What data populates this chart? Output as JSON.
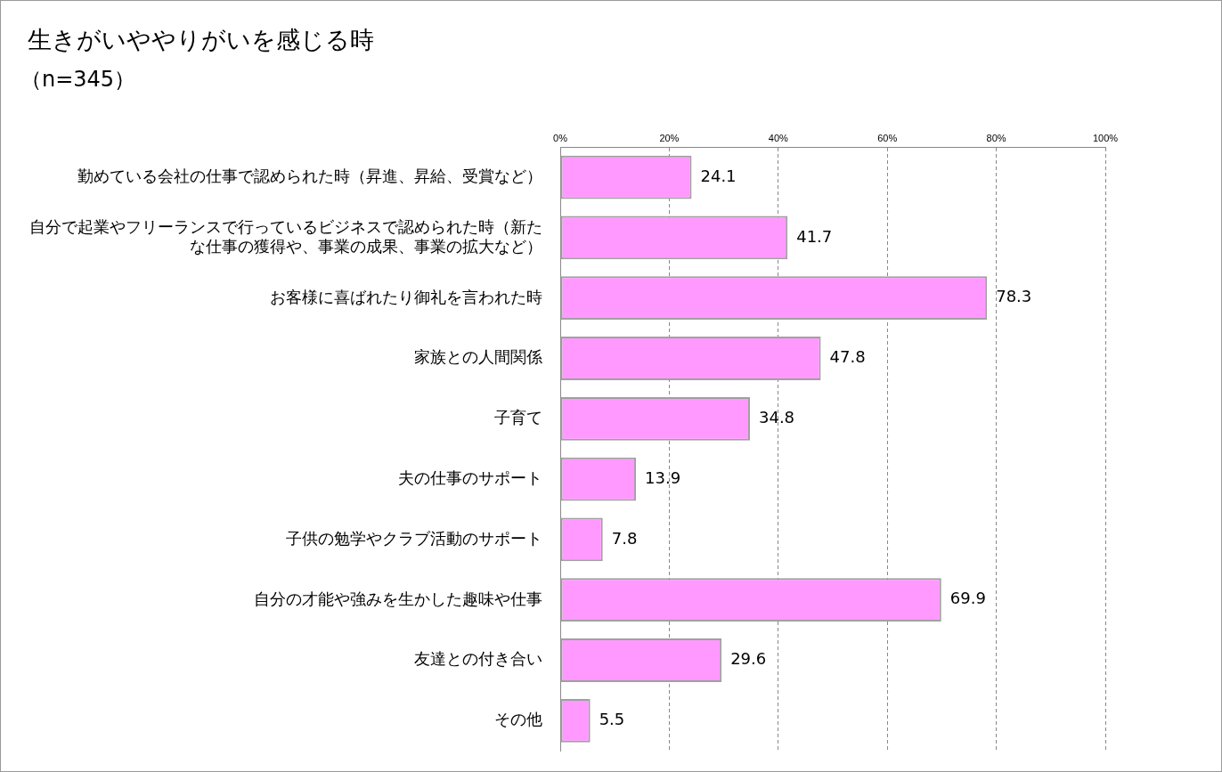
{
  "chart_data": {
    "type": "bar",
    "orientation": "horizontal",
    "title": "生きがいややりがいを感じる時",
    "subtitle": "（n=345）",
    "categories": [
      "勤めている会社の仕事で認められた時（昇進、昇給、受賞など）",
      "自分で起業やフリーランスで行っているビジネスで認められた時（新たな仕事の獲得や、事業の成果、事業の拡大など）",
      "お客様に喜ばれたり御礼を言われた時",
      "家族との人間関係",
      "子育て",
      "夫の仕事のサポート",
      "子供の勉学やクラブ活動のサポート",
      "自分の才能や強みを生かした趣味や仕事",
      "友達との付き合い",
      "その他"
    ],
    "values": [
      24.1,
      41.7,
      78.3,
      47.8,
      34.8,
      13.9,
      7.8,
      69.9,
      29.6,
      5.5
    ],
    "color": "#ff99ff",
    "data_labels": true,
    "grid": "x",
    "line_style": "dashed",
    "legend": false,
    "xlim": [
      0,
      100
    ],
    "xticks": [
      {
        "value": 0,
        "label": "0%"
      },
      {
        "value": 20,
        "label": "20%"
      },
      {
        "value": 40,
        "label": "40%"
      },
      {
        "value": 60,
        "label": "60%"
      },
      {
        "value": 80,
        "label": "80%"
      },
      {
        "value": 100,
        "label": "100%"
      }
    ]
  }
}
